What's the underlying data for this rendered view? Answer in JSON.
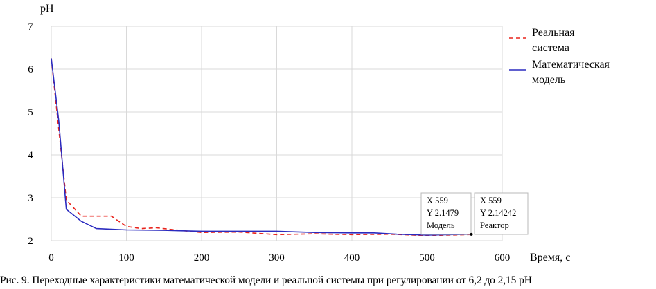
{
  "caption": "Рис. 9. Переходные характеристики математической модели и реальной системы при регулировании от 6,2 до 2,15 pH",
  "chart_data": {
    "type": "line",
    "ylabel": "pH",
    "xlabel": "Время, с",
    "xlim": [
      0,
      600
    ],
    "ylim": [
      2,
      7
    ],
    "x_ticks": [
      "0",
      "100",
      "200",
      "300",
      "400",
      "500",
      "600"
    ],
    "y_ticks": [
      "2",
      "3",
      "4",
      "5",
      "6",
      "7"
    ],
    "grid": true,
    "legend_placement": "right",
    "series": [
      {
        "name": "Реальная система",
        "color": "#e8231c",
        "style": "dashed",
        "x": [
          0,
          10,
          20,
          40,
          60,
          80,
          100,
          120,
          140,
          160,
          200,
          250,
          300,
          350,
          400,
          450,
          500,
          559
        ],
        "y": [
          6.25,
          4.6,
          2.95,
          2.57,
          2.57,
          2.57,
          2.33,
          2.28,
          2.3,
          2.26,
          2.19,
          2.2,
          2.14,
          2.16,
          2.14,
          2.15,
          2.12,
          2.14242
        ]
      },
      {
        "name": "Математическая модель",
        "color": "#2b2bbf",
        "style": "solid",
        "x": [
          0,
          10,
          20,
          40,
          60,
          100,
          150,
          200,
          250,
          300,
          350,
          400,
          430,
          460,
          500,
          559
        ],
        "y": [
          6.25,
          4.8,
          2.73,
          2.45,
          2.28,
          2.25,
          2.24,
          2.22,
          2.22,
          2.22,
          2.19,
          2.18,
          2.18,
          2.15,
          2.13,
          2.1479
        ]
      }
    ],
    "datatips": [
      {
        "x": "X 559",
        "y": "Y 2.1479",
        "label": "Модель"
      },
      {
        "x": "X 559",
        "y": "Y 2.14242",
        "label": "Реактор"
      }
    ]
  }
}
